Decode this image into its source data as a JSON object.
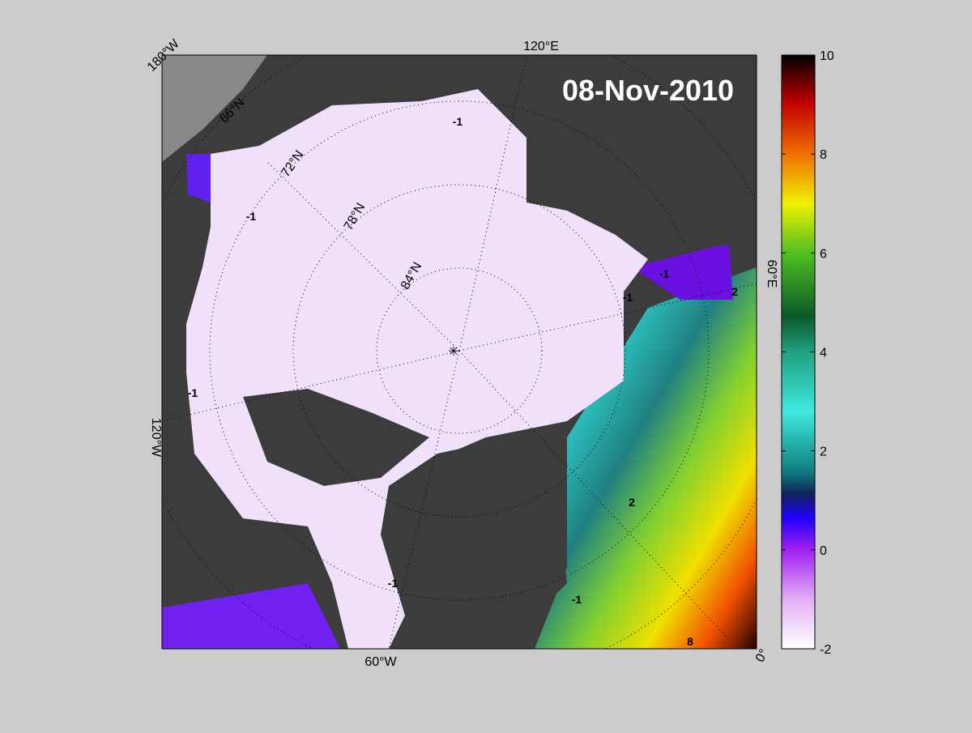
{
  "title": "08-Nov-2010",
  "longitude_labels": [
    "180°W",
    "120°E",
    "60°E",
    "0°",
    "60°W",
    "120°W"
  ],
  "latitude_labels": [
    "66°N",
    "72°N",
    "78°N",
    "84°N"
  ],
  "contour_labels": [
    "-1",
    "-1",
    "-1",
    "-1",
    "-1",
    "-1",
    "-1",
    "2",
    "2",
    "8"
  ],
  "colorbar": {
    "lim": [
      -2,
      10
    ],
    "ticks": [
      -2,
      0,
      2,
      4,
      6,
      8,
      10
    ]
  }
}
